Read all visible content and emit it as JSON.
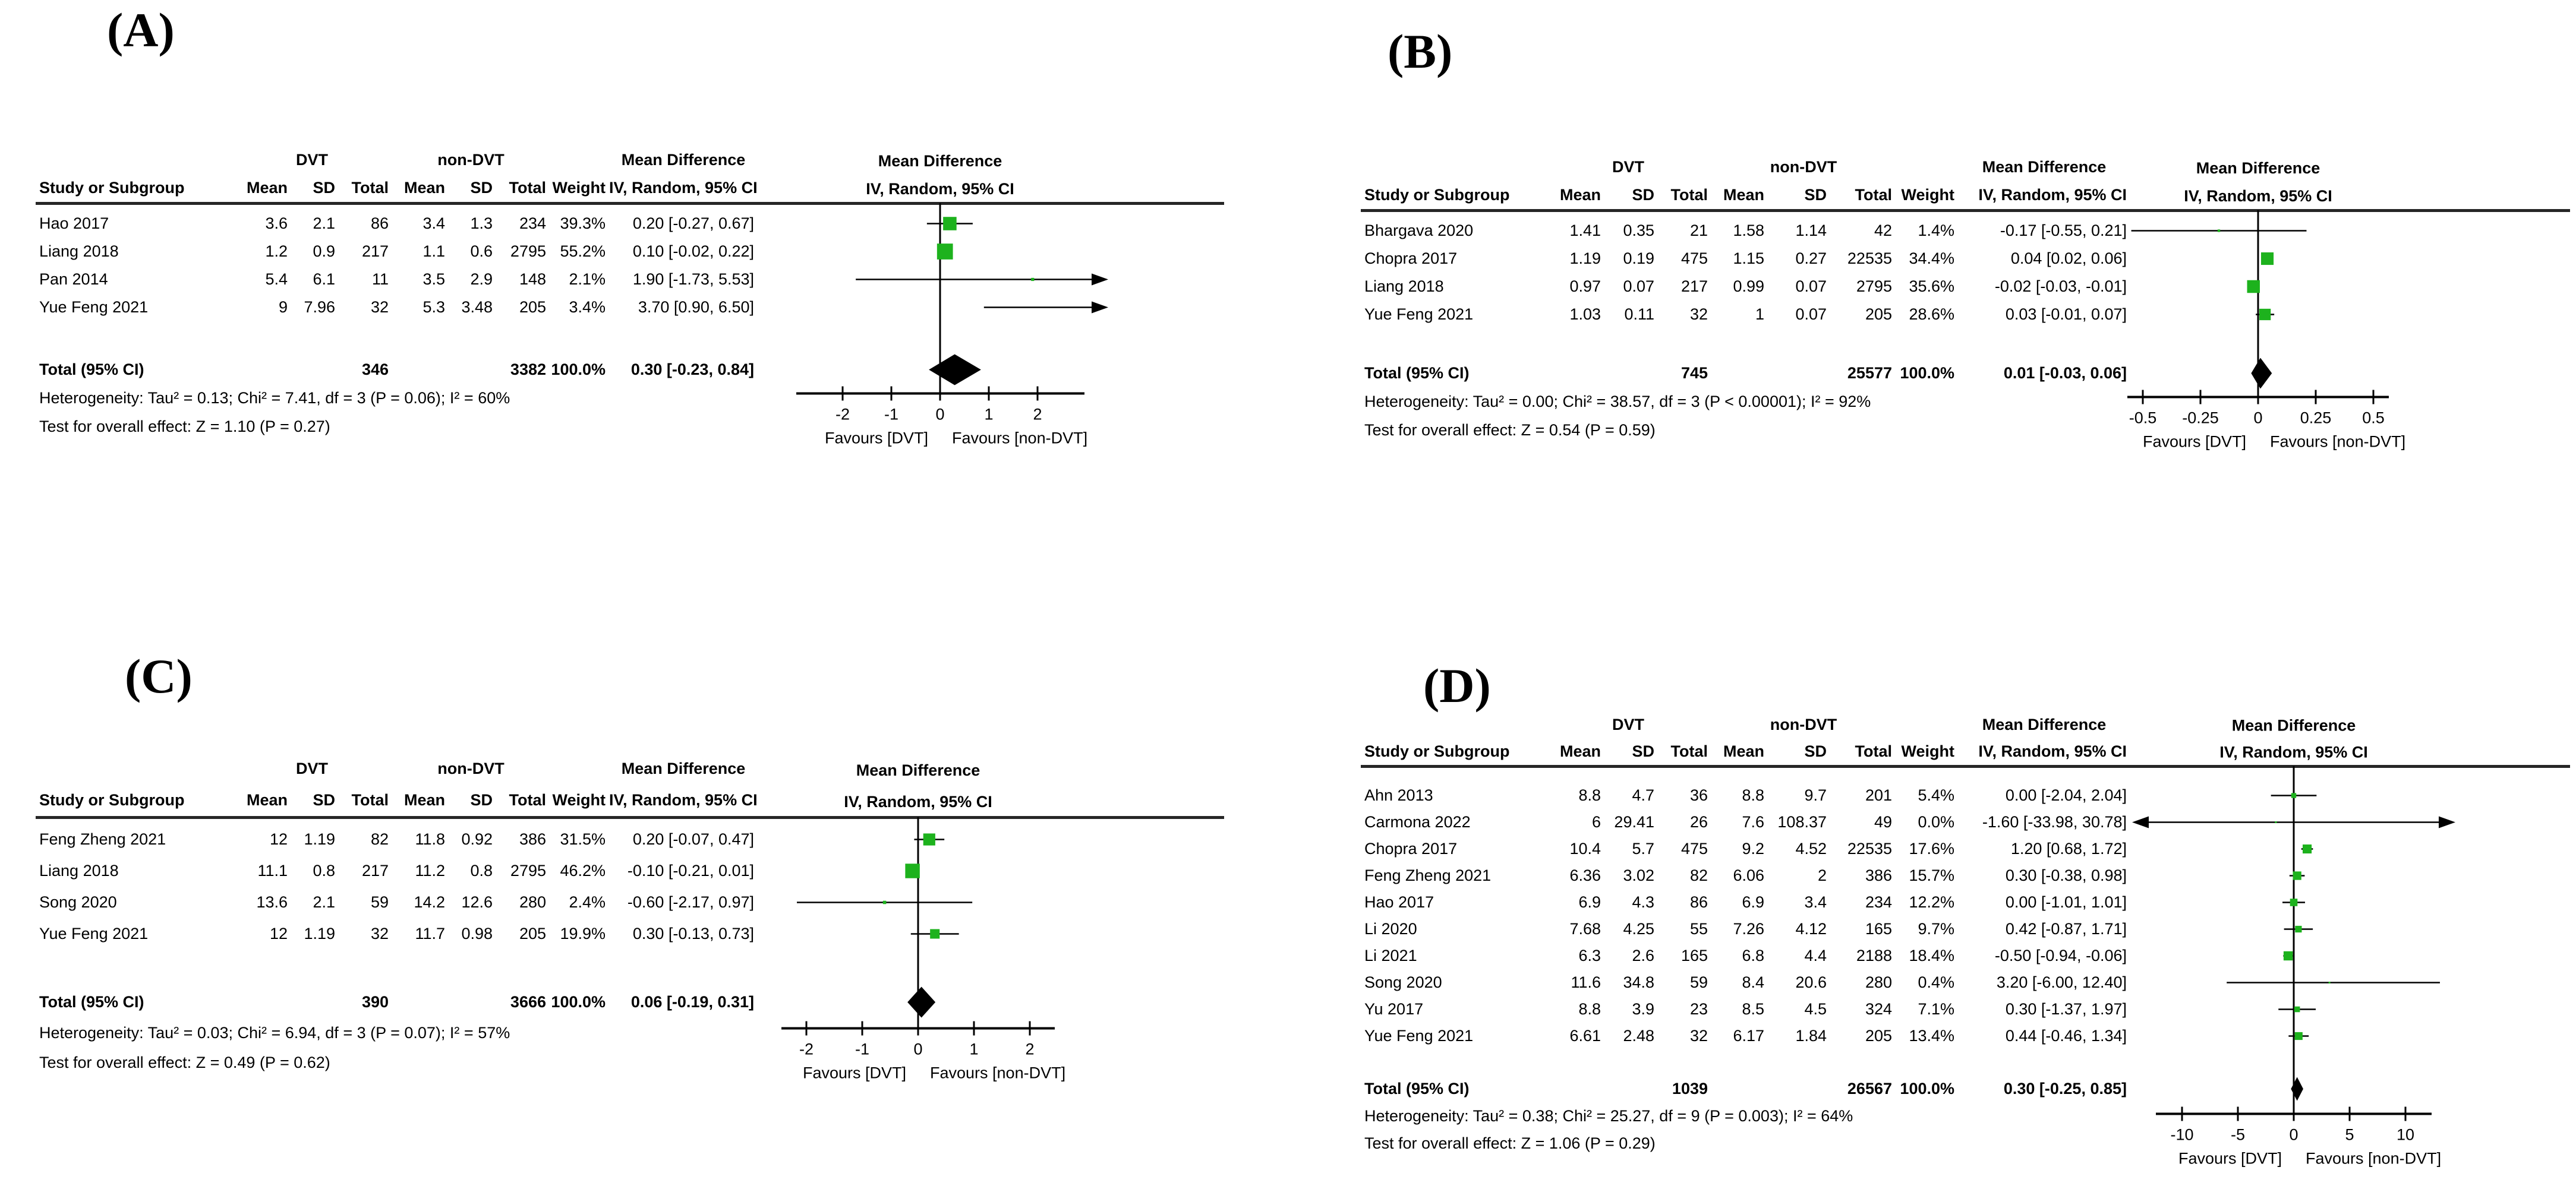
{
  "figure": {
    "group1": "DVT",
    "group2": "non-DVT",
    "effect_title": "Mean Difference",
    "method_header": "IV, Random, 95% CI",
    "favours_left": "Favours [DVT]",
    "favours_right": "Favours [non-DVT]",
    "columns": {
      "study": "Study or Subgroup",
      "mean": "Mean",
      "sd": "SD",
      "total": "Total",
      "weight": "Weight"
    },
    "colors": {
      "marker_green": "#1db21d",
      "diamond_black": "#000000",
      "line_black": "#000000"
    }
  },
  "chart_data": [
    {
      "id": "a",
      "label": "(A)",
      "type": "forest",
      "effect_measure": "Mean Difference",
      "method": "IV, Random, 95% CI",
      "axis": {
        "ticks": [
          -2,
          -1,
          0,
          1,
          2
        ],
        "xlim": [
          -3,
          3
        ]
      },
      "studies": [
        {
          "study": "Hao 2017",
          "dvt": {
            "mean": "3.6",
            "sd": "2.1",
            "total": "86"
          },
          "non_dvt": {
            "mean": "3.4",
            "sd": "1.3",
            "total": "234"
          },
          "weight": "39.3%",
          "ci_text": "0.20 [-0.27, 0.67]",
          "est": 0.2,
          "lo": -0.27,
          "hi": 0.67,
          "weight_value": 39.3
        },
        {
          "study": "Liang 2018",
          "dvt": {
            "mean": "1.2",
            "sd": "0.9",
            "total": "217"
          },
          "non_dvt": {
            "mean": "1.1",
            "sd": "0.6",
            "total": "2795"
          },
          "weight": "55.2%",
          "ci_text": "0.10 [-0.02, 0.22]",
          "est": 0.1,
          "lo": -0.02,
          "hi": 0.22,
          "weight_value": 55.2
        },
        {
          "study": "Pan 2014",
          "dvt": {
            "mean": "5.4",
            "sd": "6.1",
            "total": "11"
          },
          "non_dvt": {
            "mean": "3.5",
            "sd": "2.9",
            "total": "148"
          },
          "weight": "2.1%",
          "ci_text": "1.90 [-1.73, 5.53]",
          "est": 1.9,
          "lo": -1.73,
          "hi": 5.53,
          "weight_value": 2.1
        },
        {
          "study": "Yue Feng 2021",
          "dvt": {
            "mean": "9",
            "sd": "7.96",
            "total": "32"
          },
          "non_dvt": {
            "mean": "5.3",
            "sd": "3.48",
            "total": "205"
          },
          "weight": "3.4%",
          "ci_text": "3.70 [0.90, 6.50]",
          "est": 3.7,
          "lo": 0.9,
          "hi": 6.5,
          "weight_value": 3.4
        }
      ],
      "total": {
        "label": "Total (95% CI)",
        "dvt_total": "346",
        "non_dvt_total": "3382",
        "weight": "100.0%",
        "ci_text": "0.30 [-0.23, 0.84]",
        "est": 0.3,
        "lo": -0.23,
        "hi": 0.84
      },
      "heterogeneity": "Heterogeneity: Tau² = 0.13; Chi² = 7.41, df = 3 (P = 0.06); I² = 60%",
      "overall_test": "Test for overall effect: Z = 1.10 (P = 0.27)"
    },
    {
      "id": "b",
      "label": "(B)",
      "type": "forest",
      "effect_measure": "Mean Difference",
      "method": "IV, Random, 95% CI",
      "axis": {
        "ticks": [
          -0.5,
          -0.25,
          0,
          0.25,
          0.5
        ],
        "xlim": [
          -0.57,
          0.57
        ]
      },
      "studies": [
        {
          "study": "Bhargava 2020",
          "dvt": {
            "mean": "1.41",
            "sd": "0.35",
            "total": "21"
          },
          "non_dvt": {
            "mean": "1.58",
            "sd": "1.14",
            "total": "42"
          },
          "weight": "1.4%",
          "ci_text": "-0.17 [-0.55, 0.21]",
          "est": -0.17,
          "lo": -0.55,
          "hi": 0.21,
          "weight_value": 1.4
        },
        {
          "study": "Chopra 2017",
          "dvt": {
            "mean": "1.19",
            "sd": "0.19",
            "total": "475"
          },
          "non_dvt": {
            "mean": "1.15",
            "sd": "0.27",
            "total": "22535"
          },
          "weight": "34.4%",
          "ci_text": "0.04 [0.02, 0.06]",
          "est": 0.04,
          "lo": 0.02,
          "hi": 0.06,
          "weight_value": 34.4
        },
        {
          "study": "Liang 2018",
          "dvt": {
            "mean": "0.97",
            "sd": "0.07",
            "total": "217"
          },
          "non_dvt": {
            "mean": "0.99",
            "sd": "0.07",
            "total": "2795"
          },
          "weight": "35.6%",
          "ci_text": "-0.02 [-0.03, -0.01]",
          "est": -0.02,
          "lo": -0.03,
          "hi": -0.01,
          "weight_value": 35.6
        },
        {
          "study": "Yue Feng 2021",
          "dvt": {
            "mean": "1.03",
            "sd": "0.11",
            "total": "32"
          },
          "non_dvt": {
            "mean": "1",
            "sd": "0.07",
            "total": "205"
          },
          "weight": "28.6%",
          "ci_text": "0.03 [-0.01, 0.07]",
          "est": 0.03,
          "lo": -0.01,
          "hi": 0.07,
          "weight_value": 28.6
        }
      ],
      "total": {
        "label": "Total (95% CI)",
        "dvt_total": "745",
        "non_dvt_total": "25577",
        "weight": "100.0%",
        "ci_text": "0.01 [-0.03, 0.06]",
        "est": 0.01,
        "lo": -0.03,
        "hi": 0.06
      },
      "heterogeneity": "Heterogeneity: Tau² = 0.00; Chi² = 38.57, df = 3 (P < 0.00001); I² = 92%",
      "overall_test": "Test for overall effect: Z = 0.54 (P = 0.59)"
    },
    {
      "id": "c",
      "label": "(C)",
      "type": "forest",
      "effect_measure": "Mean Difference",
      "method": "IV, Random, 95% CI",
      "axis": {
        "ticks": [
          -2,
          -1,
          0,
          1,
          2
        ],
        "xlim": [
          -2.4,
          2.4
        ]
      },
      "studies": [
        {
          "study": "Feng Zheng 2021",
          "dvt": {
            "mean": "12",
            "sd": "1.19",
            "total": "82"
          },
          "non_dvt": {
            "mean": "11.8",
            "sd": "0.92",
            "total": "386"
          },
          "weight": "31.5%",
          "ci_text": "0.20 [-0.07, 0.47]",
          "est": 0.2,
          "lo": -0.07,
          "hi": 0.47,
          "weight_value": 31.5
        },
        {
          "study": "Liang 2018",
          "dvt": {
            "mean": "11.1",
            "sd": "0.8",
            "total": "217"
          },
          "non_dvt": {
            "mean": "11.2",
            "sd": "0.8",
            "total": "2795"
          },
          "weight": "46.2%",
          "ci_text": "-0.10 [-0.21, 0.01]",
          "est": -0.1,
          "lo": -0.21,
          "hi": 0.01,
          "weight_value": 46.2
        },
        {
          "study": "Song 2020",
          "dvt": {
            "mean": "13.6",
            "sd": "2.1",
            "total": "59"
          },
          "non_dvt": {
            "mean": "14.2",
            "sd": "12.6",
            "total": "280"
          },
          "weight": "2.4%",
          "ci_text": "-0.60 [-2.17, 0.97]",
          "est": -0.6,
          "lo": -2.17,
          "hi": 0.97,
          "weight_value": 2.4
        },
        {
          "study": "Yue Feng 2021",
          "dvt": {
            "mean": "12",
            "sd": "1.19",
            "total": "32"
          },
          "non_dvt": {
            "mean": "11.7",
            "sd": "0.98",
            "total": "205"
          },
          "weight": "19.9%",
          "ci_text": "0.30 [-0.13, 0.73]",
          "est": 0.3,
          "lo": -0.13,
          "hi": 0.73,
          "weight_value": 19.9
        }
      ],
      "total": {
        "label": "Total (95% CI)",
        "dvt_total": "390",
        "non_dvt_total": "3666",
        "weight": "100.0%",
        "ci_text": "0.06 [-0.19, 0.31]",
        "est": 0.06,
        "lo": -0.19,
        "hi": 0.31
      },
      "heterogeneity": "Heterogeneity: Tau² = 0.03; Chi² = 6.94, df = 3 (P = 0.07); I² = 57%",
      "overall_test": "Test for overall effect: Z = 0.49 (P = 0.62)"
    },
    {
      "id": "d",
      "label": "(D)",
      "type": "forest",
      "effect_measure": "Mean Difference",
      "method": "IV, Random, 95% CI",
      "axis": {
        "ticks": [
          -10,
          -5,
          0,
          5,
          10
        ],
        "xlim": [
          -12.4,
          12.4
        ]
      },
      "studies": [
        {
          "study": "Ahn 2013",
          "dvt": {
            "mean": "8.8",
            "sd": "4.7",
            "total": "36"
          },
          "non_dvt": {
            "mean": "8.8",
            "sd": "9.7",
            "total": "201"
          },
          "weight": "5.4%",
          "ci_text": "0.00 [-2.04, 2.04]",
          "est": 0.0,
          "lo": -2.04,
          "hi": 2.04,
          "weight_value": 5.4
        },
        {
          "study": "Carmona 2022",
          "dvt": {
            "mean": "6",
            "sd": "29.41",
            "total": "26"
          },
          "non_dvt": {
            "mean": "7.6",
            "sd": "108.37",
            "total": "49"
          },
          "weight": "0.0%",
          "ci_text": "-1.60 [-33.98, 30.78]",
          "est": -1.6,
          "lo": -33.98,
          "hi": 30.78,
          "weight_value": 0.0
        },
        {
          "study": "Chopra 2017",
          "dvt": {
            "mean": "10.4",
            "sd": "5.7",
            "total": "475"
          },
          "non_dvt": {
            "mean": "9.2",
            "sd": "4.52",
            "total": "22535"
          },
          "weight": "17.6%",
          "ci_text": "1.20 [0.68, 1.72]",
          "est": 1.2,
          "lo": 0.68,
          "hi": 1.72,
          "weight_value": 17.6
        },
        {
          "study": "Feng Zheng 2021",
          "dvt": {
            "mean": "6.36",
            "sd": "3.02",
            "total": "82"
          },
          "non_dvt": {
            "mean": "6.06",
            "sd": "2",
            "total": "386"
          },
          "weight": "15.7%",
          "ci_text": "0.30 [-0.38, 0.98]",
          "est": 0.3,
          "lo": -0.38,
          "hi": 0.98,
          "weight_value": 15.7
        },
        {
          "study": "Hao 2017",
          "dvt": {
            "mean": "6.9",
            "sd": "4.3",
            "total": "86"
          },
          "non_dvt": {
            "mean": "6.9",
            "sd": "3.4",
            "total": "234"
          },
          "weight": "12.2%",
          "ci_text": "0.00 [-1.01, 1.01]",
          "est": 0.0,
          "lo": -1.01,
          "hi": 1.01,
          "weight_value": 12.2
        },
        {
          "study": "Li 2020",
          "dvt": {
            "mean": "7.68",
            "sd": "4.25",
            "total": "55"
          },
          "non_dvt": {
            "mean": "7.26",
            "sd": "4.12",
            "total": "165"
          },
          "weight": "9.7%",
          "ci_text": "0.42 [-0.87, 1.71]",
          "est": 0.42,
          "lo": -0.87,
          "hi": 1.71,
          "weight_value": 9.7
        },
        {
          "study": "Li 2021",
          "dvt": {
            "mean": "6.3",
            "sd": "2.6",
            "total": "165"
          },
          "non_dvt": {
            "mean": "6.8",
            "sd": "4.4",
            "total": "2188"
          },
          "weight": "18.4%",
          "ci_text": "-0.50 [-0.94, -0.06]",
          "est": -0.5,
          "lo": -0.94,
          "hi": -0.06,
          "weight_value": 18.4
        },
        {
          "study": "Song 2020",
          "dvt": {
            "mean": "11.6",
            "sd": "34.8",
            "total": "59"
          },
          "non_dvt": {
            "mean": "8.4",
            "sd": "20.6",
            "total": "280"
          },
          "weight": "0.4%",
          "ci_text": "3.20 [-6.00, 12.40]",
          "est": 3.2,
          "lo": -6.0,
          "hi": 12.4,
          "weight_value": 0.4
        },
        {
          "study": "Yu 2017",
          "dvt": {
            "mean": "8.8",
            "sd": "3.9",
            "total": "23"
          },
          "non_dvt": {
            "mean": "8.5",
            "sd": "4.5",
            "total": "324"
          },
          "weight": "7.1%",
          "ci_text": "0.30 [-1.37, 1.97]",
          "est": 0.3,
          "lo": -1.37,
          "hi": 1.97,
          "weight_value": 7.1
        },
        {
          "study": "Yue Feng 2021",
          "dvt": {
            "mean": "6.61",
            "sd": "2.48",
            "total": "32"
          },
          "non_dvt": {
            "mean": "6.17",
            "sd": "1.84",
            "total": "205"
          },
          "weight": "13.4%",
          "ci_text": "0.44 [-0.46, 1.34]",
          "est": 0.44,
          "lo": -0.46,
          "hi": 1.34,
          "weight_value": 13.4
        }
      ],
      "total": {
        "label": "Total (95% CI)",
        "dvt_total": "1039",
        "non_dvt_total": "26567",
        "weight": "100.0%",
        "ci_text": "0.30 [-0.25, 0.85]",
        "est": 0.3,
        "lo": -0.25,
        "hi": 0.85
      },
      "heterogeneity": "Heterogeneity: Tau² = 0.38; Chi² = 25.27, df = 9 (P = 0.003); I² = 64%",
      "overall_test": "Test for overall effect: Z = 1.06 (P = 0.29)"
    }
  ]
}
